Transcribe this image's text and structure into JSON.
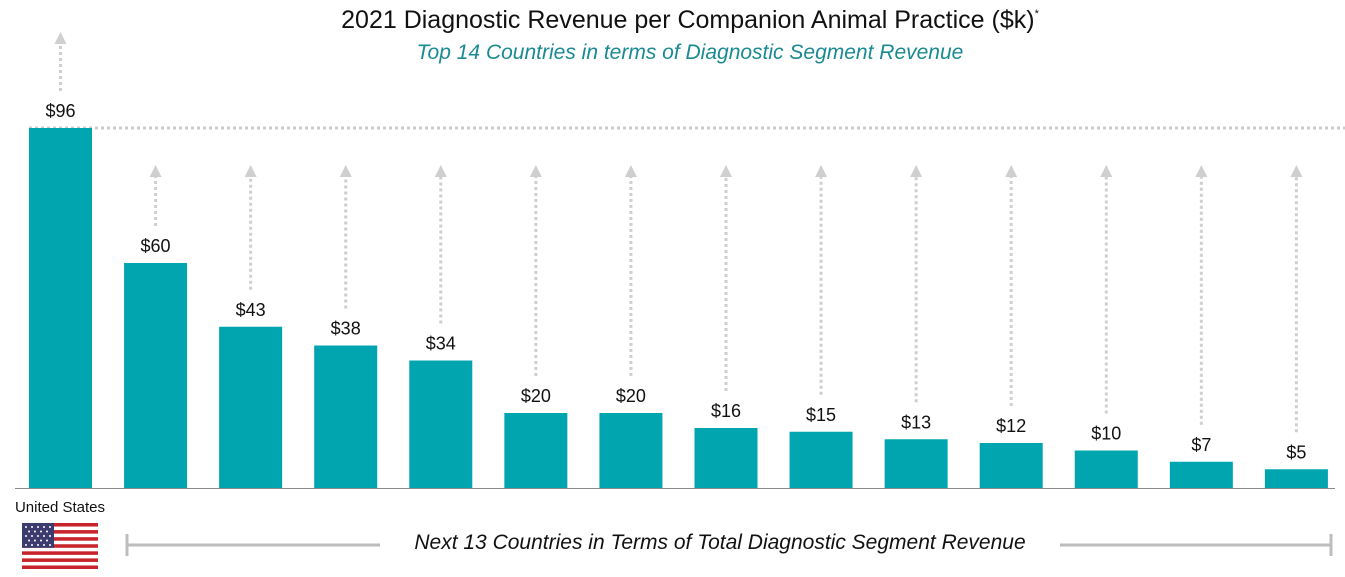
{
  "chart_data": {
    "type": "bar",
    "title": "2021 Diagnostic Revenue per Companion Animal Practice ($k)",
    "title_marker": "*",
    "subtitle": "Top 14 Countries in terms of Diagnostic Segment Revenue",
    "values": [
      96,
      60,
      43,
      38,
      34,
      20,
      20,
      16,
      15,
      13,
      12,
      10,
      7,
      5
    ],
    "value_labels": [
      "$96",
      "$60",
      "$43",
      "$38",
      "$34",
      "$20",
      "$20",
      "$16",
      "$15",
      "$13",
      "$12",
      "$10",
      "$7",
      "$5"
    ],
    "first_category": "United States",
    "group_label": "Next 13 Countries in Terms of Total Diagnostic Segment Revenue",
    "ylim": [
      0,
      96
    ],
    "grid": false,
    "legend": "none"
  },
  "colors": {
    "bar": "#00a5b0",
    "subtitle": "#1a8a92",
    "arrow": "#cfcfcf",
    "bracket": "#bdbdbd"
  },
  "icons": {
    "flag": "us-flag-icon"
  }
}
